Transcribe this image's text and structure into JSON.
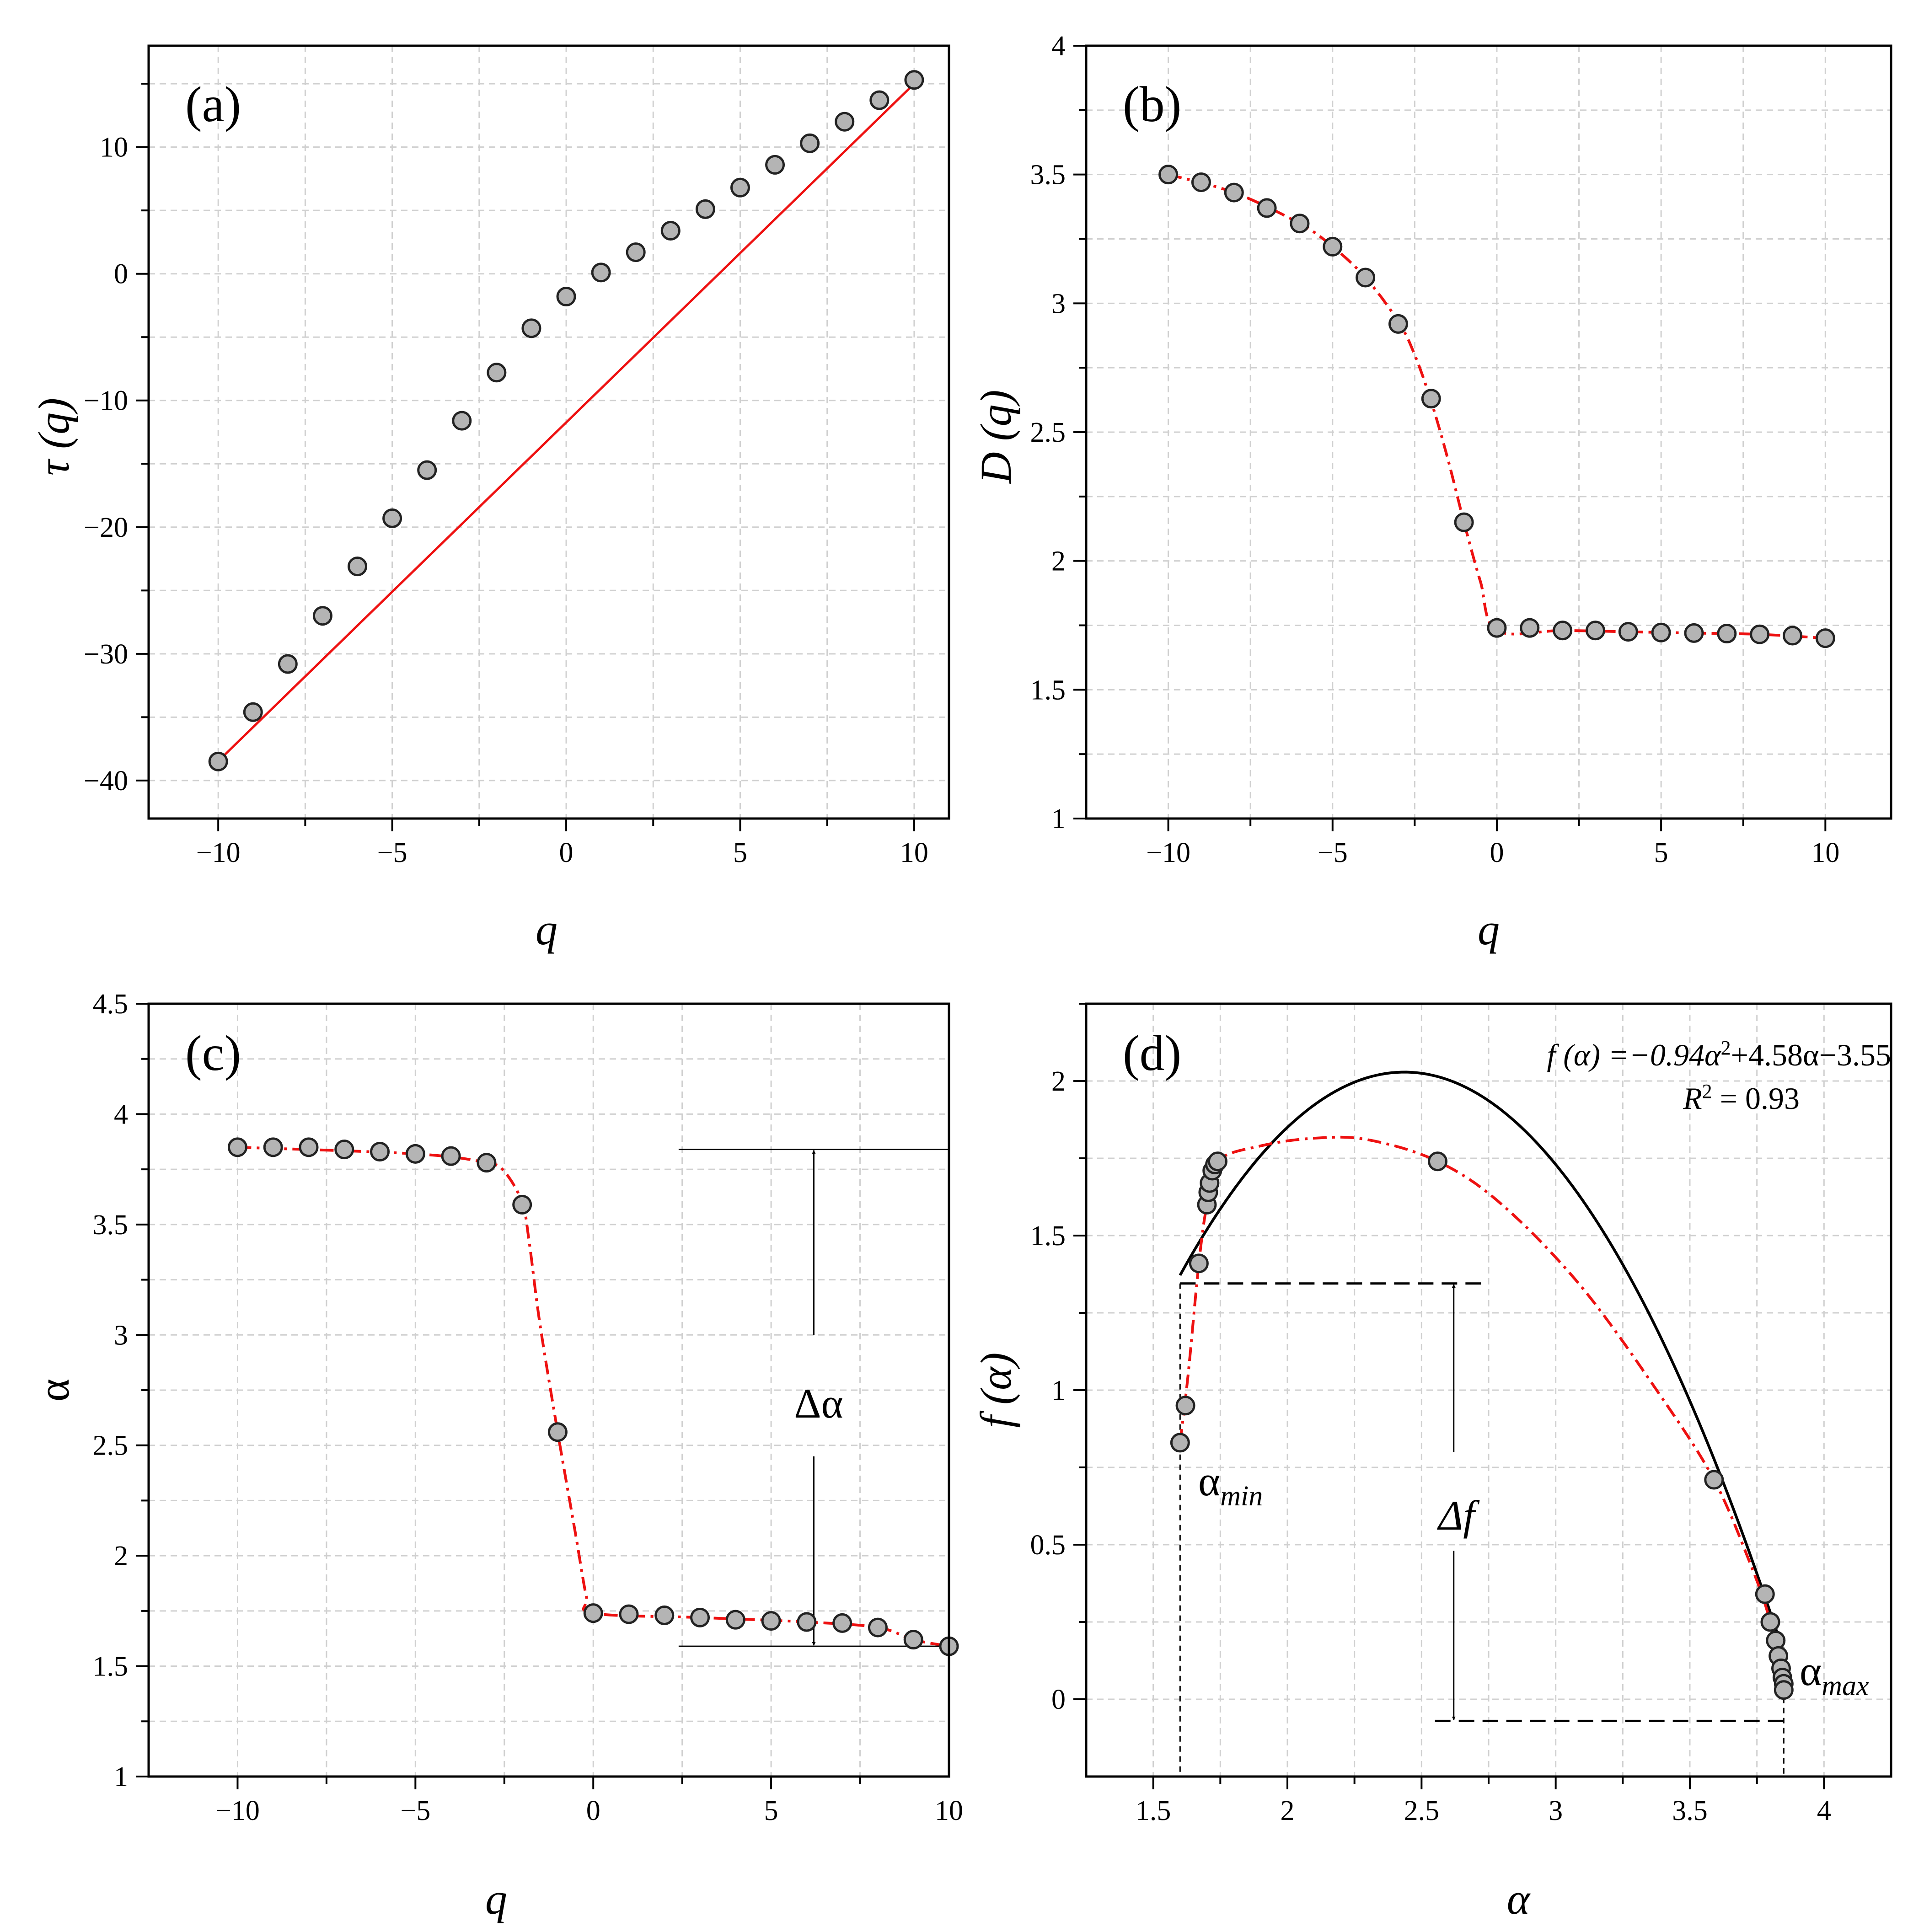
{
  "chart_data": [
    {
      "type": "scatter",
      "panel": "(a)",
      "xlabel": "q",
      "ylabel": "τ(q)",
      "xlim": [
        -12,
        11
      ],
      "ylim": [
        -43,
        18
      ],
      "xticks": [
        -10,
        -5,
        0,
        5,
        10
      ],
      "xticklabels": [
        "−10",
        "−5",
        "0",
        "5",
        "10"
      ],
      "yticks": [
        -40,
        -30,
        -20,
        -10,
        0,
        10
      ],
      "yticklabels": [
        "−40",
        "−30",
        "−20",
        "−10",
        "0",
        "10"
      ],
      "grid": true,
      "series": [
        {
          "name": "τ(q)",
          "x": [
            -10,
            -9,
            -8,
            -7,
            -6,
            -5,
            -4,
            -3,
            -2,
            -1,
            0,
            1,
            2,
            3,
            4,
            5,
            6,
            7,
            8,
            9,
            10
          ],
          "y": [
            -38.5,
            -34.6,
            -30.8,
            -27.0,
            -23.1,
            -19.3,
            -15.5,
            -11.6,
            -7.8,
            -4.3,
            -1.8,
            0.1,
            1.7,
            3.4,
            5.1,
            6.8,
            8.6,
            10.3,
            12.0,
            13.7,
            15.3
          ]
        }
      ],
      "fit_line": {
        "x": [
          -9.9,
          10
        ],
        "y": [
          -38.2,
          15.0
        ]
      }
    },
    {
      "type": "scatter",
      "panel": "(b)",
      "xlabel": "q",
      "ylabel": "D(q)",
      "xlim": [
        -12.5,
        12
      ],
      "ylim": [
        1,
        4
      ],
      "xticks": [
        -10,
        -5,
        0,
        5,
        10
      ],
      "xticklabels": [
        "−10",
        "−5",
        "0",
        "5",
        "10"
      ],
      "yticks": [
        1,
        1.5,
        2,
        2.5,
        3,
        3.5,
        4
      ],
      "yticklabels": [
        "1",
        "1.5",
        "2",
        "2.5",
        "3",
        "3.5",
        "4"
      ],
      "grid": true,
      "series": [
        {
          "name": "D(q)",
          "x": [
            -10,
            -9,
            -8,
            -7,
            -6,
            -5,
            -4,
            -3,
            -2,
            -1,
            0,
            1,
            2,
            3,
            4,
            5,
            6,
            7,
            8,
            9,
            10
          ],
          "y": [
            3.5,
            3.47,
            3.43,
            3.37,
            3.31,
            3.22,
            3.1,
            2.92,
            2.63,
            2.15,
            1.74,
            1.74,
            1.73,
            1.73,
            1.725,
            1.722,
            1.72,
            1.718,
            1.715,
            1.71,
            1.7
          ]
        }
      ],
      "curve": {
        "x": [
          -10,
          -8,
          -6,
          -5,
          -4,
          -3,
          -2.5,
          -2,
          -1.5,
          -1,
          -0.5,
          0,
          2,
          4,
          6,
          8,
          10
        ],
        "y": [
          3.5,
          3.43,
          3.31,
          3.22,
          3.1,
          2.93,
          2.8,
          2.62,
          2.4,
          2.15,
          1.92,
          1.73,
          1.73,
          1.725,
          1.72,
          1.715,
          1.7
        ]
      }
    },
    {
      "type": "scatter",
      "panel": "(c)",
      "xlabel": "q",
      "ylabel": "α",
      "xlim": [
        -12.5,
        10
      ],
      "ylim": [
        1,
        4.5
      ],
      "xticks": [
        -10,
        -5,
        0,
        5,
        10
      ],
      "xticklabels": [
        "−10",
        "−5",
        "0",
        "5",
        "10"
      ],
      "yticks": [
        1,
        1.5,
        2,
        2.5,
        3,
        3.5,
        4,
        4.5
      ],
      "yticklabels": [
        "1",
        "1.5",
        "2",
        "2.5",
        "3",
        "3.5",
        "4",
        "4.5"
      ],
      "grid": true,
      "series": [
        {
          "name": "α(q)",
          "x": [
            -10,
            -9,
            -8,
            -7,
            -6,
            -5,
            -4,
            -3,
            -2,
            -1,
            0,
            1,
            2,
            3,
            4,
            5,
            6,
            7,
            8,
            9,
            10
          ],
          "y": [
            3.85,
            3.85,
            3.85,
            3.84,
            3.83,
            3.82,
            3.81,
            3.78,
            3.59,
            2.56,
            1.74,
            1.735,
            1.73,
            1.72,
            1.71,
            1.705,
            1.7,
            1.695,
            1.675,
            1.62,
            1.59
          ]
        }
      ],
      "curve": {
        "x": [
          -10,
          -5,
          -3,
          -2.5,
          -2,
          -1.8,
          -1.5,
          -1,
          -0.5,
          -0.2,
          0,
          3,
          6,
          8,
          9,
          10
        ],
        "y": [
          3.85,
          3.82,
          3.78,
          3.74,
          3.6,
          3.42,
          3.05,
          2.56,
          2.1,
          1.82,
          1.74,
          1.72,
          1.7,
          1.675,
          1.62,
          1.59
        ]
      },
      "delta_range": {
        "upper": 3.84,
        "lower": 1.59,
        "x_start": 2.4,
        "x_end": 10,
        "x_arrow": 6.2
      },
      "annotations": [
        "Δα"
      ]
    },
    {
      "type": "scatter",
      "panel": "(d)",
      "xlabel": "α",
      "ylabel": "f(α)",
      "xlim": [
        1.25,
        4.25
      ],
      "ylim": [
        -0.25,
        2.25
      ],
      "xticks": [
        1.5,
        2,
        2.5,
        3,
        3.5,
        4
      ],
      "xticklabels": [
        "1.5",
        "2",
        "2.5",
        "3",
        "3.5",
        "4"
      ],
      "yticks": [
        0,
        0.5,
        1,
        1.5,
        2
      ],
      "yticklabels": [
        "0",
        "0.5",
        "1",
        "1.5",
        "2"
      ],
      "grid": true,
      "series": [
        {
          "name": "f(α)",
          "x": [
            1.6,
            1.62,
            1.67,
            1.7,
            1.705,
            1.71,
            1.72,
            1.73,
            1.74,
            2.56,
            3.59,
            3.78,
            3.8,
            3.82,
            3.83,
            3.84,
            3.845,
            3.85,
            3.85
          ],
          "y": [
            0.83,
            0.95,
            1.41,
            1.6,
            1.64,
            1.67,
            1.71,
            1.73,
            1.74,
            1.74,
            0.71,
            0.34,
            0.25,
            0.19,
            0.14,
            0.1,
            0.07,
            0.05,
            0.03
          ]
        }
      ],
      "red_curve": {
        "x": [
          1.6,
          1.63,
          1.67,
          1.7,
          1.74,
          1.9,
          2.1,
          2.3,
          2.56,
          2.8,
          3.1,
          3.4,
          3.59,
          3.72,
          3.8,
          3.85
        ],
        "y": [
          0.83,
          1.05,
          1.41,
          1.6,
          1.74,
          1.79,
          1.815,
          1.81,
          1.74,
          1.6,
          1.33,
          0.97,
          0.71,
          0.45,
          0.25,
          0.03
        ]
      },
      "quadratic_fit": {
        "a": -0.94,
        "b": 4.58,
        "c": -3.55,
        "x_range": [
          1.6,
          3.85
        ]
      },
      "dashed_lines": {
        "upper_f": 1.345,
        "upper_x_end": 2.73,
        "lower_f": -0.07,
        "lower_x_start": 2.55,
        "alpha_min": 1.6,
        "alpha_max": 3.85,
        "arrow_x": 2.62
      },
      "equation": "f (α) =−0.94α²+4.58α−3.55",
      "r2": "R² = 0.93",
      "annotations": [
        "α_min",
        "α_max",
        "Δf"
      ]
    }
  ],
  "labels": {
    "a": "(a)",
    "b": "(b)",
    "c": "(c)",
    "d": "(d)",
    "delta_alpha": "Δα",
    "delta_f": "Δf",
    "alpha_min_base": "α",
    "alpha_min_sub": "min",
    "alpha_max_base": "α",
    "alpha_max_sub": "max",
    "eq_prefix": "f (α) =−0.94α",
    "eq_sup": "2",
    "eq_suffix": "+4.58α−3.55",
    "r2_prefix": "R",
    "r2_sup": "2",
    "r2_suffix": " = 0.93",
    "x_q": "q",
    "y_tau": "τ (q)",
    "y_D": "D (q)",
    "y_alpha": "α",
    "x_alpha": "α",
    "y_falpha": "f (α)"
  }
}
